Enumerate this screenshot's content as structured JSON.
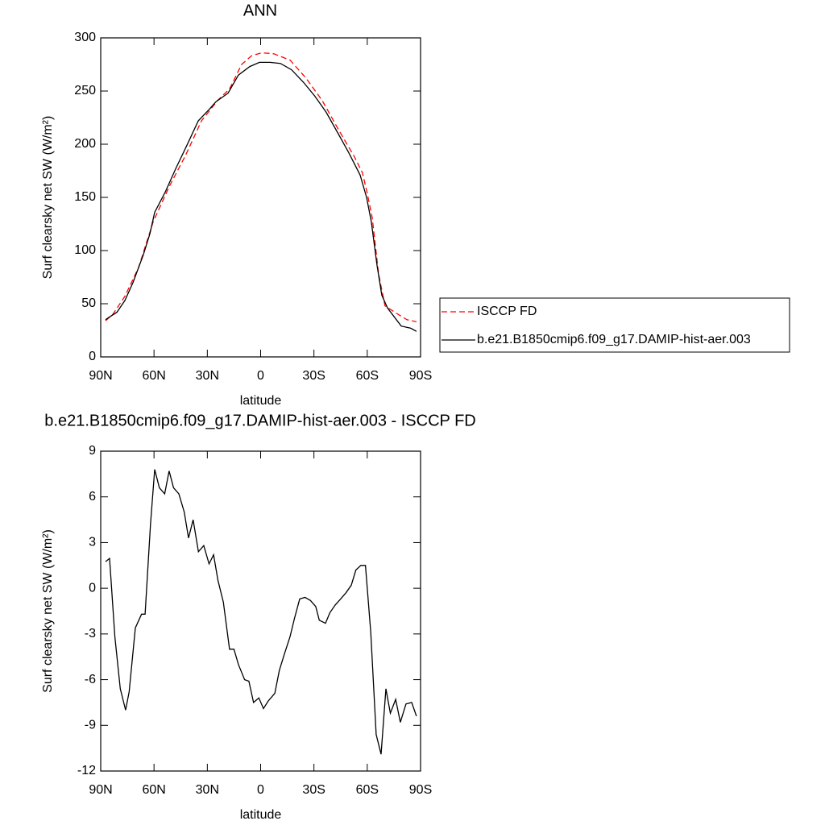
{
  "chart_data": [
    {
      "type": "line",
      "title": "ANN",
      "xlabel": "latitude",
      "ylabel": "Surf clearsky net SW (W/m²)",
      "xlim": [
        90,
        -90
      ],
      "xticks": [
        {
          "value": 90,
          "label": "90N"
        },
        {
          "value": 60,
          "label": "60N"
        },
        {
          "value": 30,
          "label": "30N"
        },
        0,
        {
          "value": -30,
          "label": "30S"
        },
        {
          "value": -60,
          "label": "60S"
        },
        {
          "value": -90,
          "label": "90S"
        }
      ],
      "ylim": [
        0,
        300
      ],
      "yticks": [
        0,
        50,
        100,
        150,
        200,
        250,
        300
      ],
      "legend": "right",
      "series": [
        {
          "name": "ISCCP FD",
          "color": "#ff0000",
          "dash": true,
          "x": [
            87.3,
            83.2,
            76.4,
            68.7,
            60.5,
            51.5,
            42.4,
            33.3,
            24.3,
            17.5,
            10.7,
            5.2,
            -0.7,
            -7.5,
            -16.6,
            -25.6,
            -34.7,
            -43.7,
            -52.8,
            -57.3,
            -60,
            -62.8,
            -66.4,
            -70,
            -75.5,
            -82.3,
            -87.7
          ],
          "values": [
            34,
            40,
            57,
            84,
            127,
            160,
            189,
            222,
            241,
            252,
            275,
            283,
            286,
            285,
            279,
            262,
            241,
            214,
            188,
            173,
            154,
            131,
            78,
            48,
            42,
            35,
            33
          ]
        },
        {
          "name": "b.e21.B1850cmip6.f09_g17.DAMIP-hist-aer.003",
          "color": "#000000",
          "dash": false,
          "x": [
            87.3,
            84.6,
            80.9,
            76.4,
            71.8,
            66,
            62.3,
            59.6,
            53.7,
            47.8,
            41.5,
            35.1,
            28.8,
            25.1,
            18.3,
            12.5,
            6.1,
            0.7,
            -5.2,
            -11.1,
            -17.4,
            -24.2,
            -30.6,
            -36.9,
            -43.3,
            -49.6,
            -56,
            -59.6,
            -62.3,
            -65.5,
            -68.2,
            -71.4,
            -75.5,
            -79.1,
            -84.5,
            -87.7
          ],
          "values": [
            35,
            38,
            42,
            53,
            70,
            96,
            116,
            136,
            155,
            177,
            199,
            222,
            233,
            240,
            248,
            265,
            273,
            277,
            277,
            276,
            270,
            258,
            245,
            230,
            211,
            192,
            171,
            150,
            127,
            86,
            58,
            46,
            37,
            29,
            27,
            24
          ]
        }
      ]
    },
    {
      "type": "line",
      "title": "b.e21.B1850cmip6.f09_g17.DAMIP-hist-aer.003 - ISCCP FD",
      "xlabel": "latitude",
      "ylabel": "Surf clearsky net SW (W/m²)",
      "xlim": [
        90,
        -90
      ],
      "xticks": [
        {
          "value": 90,
          "label": "90N"
        },
        {
          "value": 60,
          "label": "60N"
        },
        {
          "value": 30,
          "label": "30N"
        },
        0,
        {
          "value": -30,
          "label": "30S"
        },
        {
          "value": -60,
          "label": "60S"
        },
        {
          "value": -90,
          "label": "90S"
        }
      ],
      "ylim": [
        -12,
        9
      ],
      "yticks": [
        -12,
        -9,
        -6,
        -3,
        0,
        3,
        6,
        9
      ],
      "series": [
        {
          "color": "#000000",
          "dash": false,
          "x": [
            87.3,
            85,
            82,
            79,
            76,
            74,
            70.5,
            67,
            65,
            62,
            59.6,
            57,
            54,
            51.5,
            49,
            46,
            43,
            40.6,
            38,
            35,
            32,
            29,
            26.5,
            24,
            21,
            17.5,
            15,
            12.5,
            9,
            6.6,
            4,
            1,
            -1.6,
            -4.3,
            -8,
            -10.5,
            -13.4,
            -16.5,
            -19,
            -22,
            -25,
            -28,
            -31,
            -33,
            -36.5,
            -39,
            -42,
            -45,
            -48,
            -51,
            -53.6,
            -56.4,
            -59,
            -62,
            -65,
            -67.8,
            -70.5,
            -73,
            -76,
            -78.6,
            -81.8,
            -85,
            -87.7
          ],
          "values": [
            1.75,
            1.96,
            -3.2,
            -6.6,
            -8.0,
            -6.8,
            -2.6,
            -1.7,
            -1.7,
            4.2,
            7.8,
            6.6,
            6.2,
            7.7,
            6.6,
            6.2,
            5.0,
            3.3,
            4.5,
            2.4,
            2.8,
            1.6,
            2.2,
            0.5,
            -0.9,
            -4.0,
            -4.0,
            -5.0,
            -6.0,
            -6.1,
            -7.5,
            -7.2,
            -7.9,
            -7.4,
            -6.9,
            -5.4,
            -4.3,
            -3.2,
            -2.0,
            -0.7,
            -0.6,
            -0.8,
            -1.2,
            -2.1,
            -2.3,
            -1.6,
            -1.1,
            -0.7,
            -0.3,
            0.2,
            1.2,
            1.5,
            1.5,
            -2.9,
            -9.6,
            -10.9,
            -6.6,
            -8.2,
            -7.3,
            -8.8,
            -7.6,
            -7.5,
            -8.4
          ]
        }
      ]
    }
  ]
}
